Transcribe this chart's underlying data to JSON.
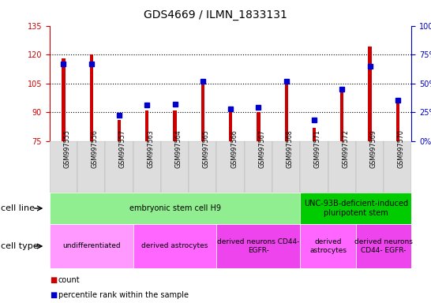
{
  "title": "GDS4669 / ILMN_1833131",
  "samples": [
    "GSM997555",
    "GSM997556",
    "GSM997557",
    "GSM997563",
    "GSM997564",
    "GSM997565",
    "GSM997566",
    "GSM997567",
    "GSM997568",
    "GSM997571",
    "GSM997572",
    "GSM997569",
    "GSM997570"
  ],
  "counts": [
    118,
    120,
    86,
    91,
    91,
    106,
    90,
    90,
    106,
    82,
    103,
    124,
    96
  ],
  "percentiles": [
    67,
    67,
    22,
    31,
    32,
    52,
    28,
    29,
    52,
    18,
    45,
    65,
    35
  ],
  "ylim_left": [
    75,
    135
  ],
  "ylim_right": [
    0,
    100
  ],
  "yticks_left": [
    75,
    90,
    105,
    120,
    135
  ],
  "yticks_right": [
    0,
    25,
    50,
    75,
    100
  ],
  "bar_color": "#cc0000",
  "dot_color": "#0000cc",
  "bar_bottom": 75,
  "cell_line_data": [
    {
      "label": "embryonic stem cell H9",
      "start": 0,
      "end": 9,
      "color": "#90ee90"
    },
    {
      "label": "UNC-93B-deficient-induced\npluripotent stem",
      "start": 9,
      "end": 13,
      "color": "#00cc00"
    }
  ],
  "cell_type_data": [
    {
      "label": "undifferentiated",
      "start": 0,
      "end": 3,
      "color": "#ff99ff"
    },
    {
      "label": "derived astrocytes",
      "start": 3,
      "end": 6,
      "color": "#ff66ff"
    },
    {
      "label": "derived neurons CD44-\nEGFR-",
      "start": 6,
      "end": 9,
      "color": "#ee44ee"
    },
    {
      "label": "derived\nastrocytes",
      "start": 9,
      "end": 11,
      "color": "#ff66ff"
    },
    {
      "label": "derived neurons\nCD44- EGFR-",
      "start": 11,
      "end": 13,
      "color": "#ee44ee"
    }
  ],
  "legend_count_color": "#cc0000",
  "legend_percentile_color": "#0000cc",
  "axis_left_color": "#cc0000",
  "axis_right_color": "#0000cc",
  "grid_yticks": [
    90,
    105,
    120
  ],
  "bar_width": 0.12,
  "dot_size": 4,
  "tick_label_fontsize": 7,
  "cell_label_fontsize": 7,
  "title_fontsize": 10,
  "row_label_fontsize": 8
}
